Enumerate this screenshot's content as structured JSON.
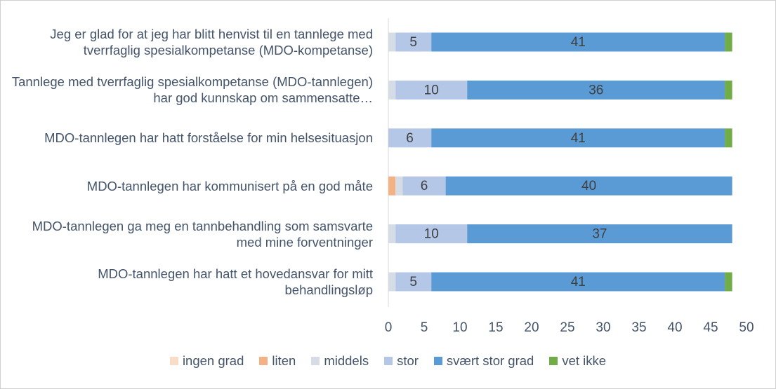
{
  "chart_data": {
    "type": "stacked_barh",
    "categories": [
      "Jeg er glad for at jeg har blitt henvist til en tannlege med tverrfaglig spesialkompetanse (MDO-kompetanse)",
      "Tannlege med tverrfaglig spesialkompetanse (MDO-tannlegen) har god kunnskap om sammensatte…",
      "MDO-tannlegen har hatt forståelse for min helsesituasjon",
      "MDO-tannlegen har kommunisert på en god måte",
      "MDO-tannlegen ga meg en tannbehandling som samsvarte med mine forventninger",
      "MDO-tannlegen har hatt et hovedansvar for mitt behandlingsløp"
    ],
    "series": [
      {
        "name": "ingen grad",
        "color": "#f8dcc8",
        "values": [
          0,
          0,
          0,
          0,
          0,
          0
        ],
        "labels": false
      },
      {
        "name": "liten",
        "color": "#f4b183",
        "values": [
          0,
          0,
          0,
          1,
          0,
          0
        ],
        "labels": false
      },
      {
        "name": "middels",
        "color": "#d6dce5",
        "values": [
          1,
          1,
          0,
          1,
          1,
          1
        ],
        "labels": false
      },
      {
        "name": "stor",
        "color": "#b4c7e7",
        "values": [
          5,
          10,
          6,
          6,
          10,
          5
        ],
        "labels": true
      },
      {
        "name": "svært stor grad",
        "color": "#5b9bd5",
        "values": [
          41,
          36,
          41,
          40,
          37,
          41
        ],
        "labels": true
      },
      {
        "name": "vet ikke",
        "color": "#70ad47",
        "values": [
          1,
          1,
          1,
          0,
          0,
          1
        ],
        "labels": false
      }
    ],
    "xlim": [
      0,
      50
    ],
    "xticks": [
      0,
      5,
      10,
      15,
      20,
      25,
      30,
      35,
      40,
      45,
      50
    ]
  }
}
